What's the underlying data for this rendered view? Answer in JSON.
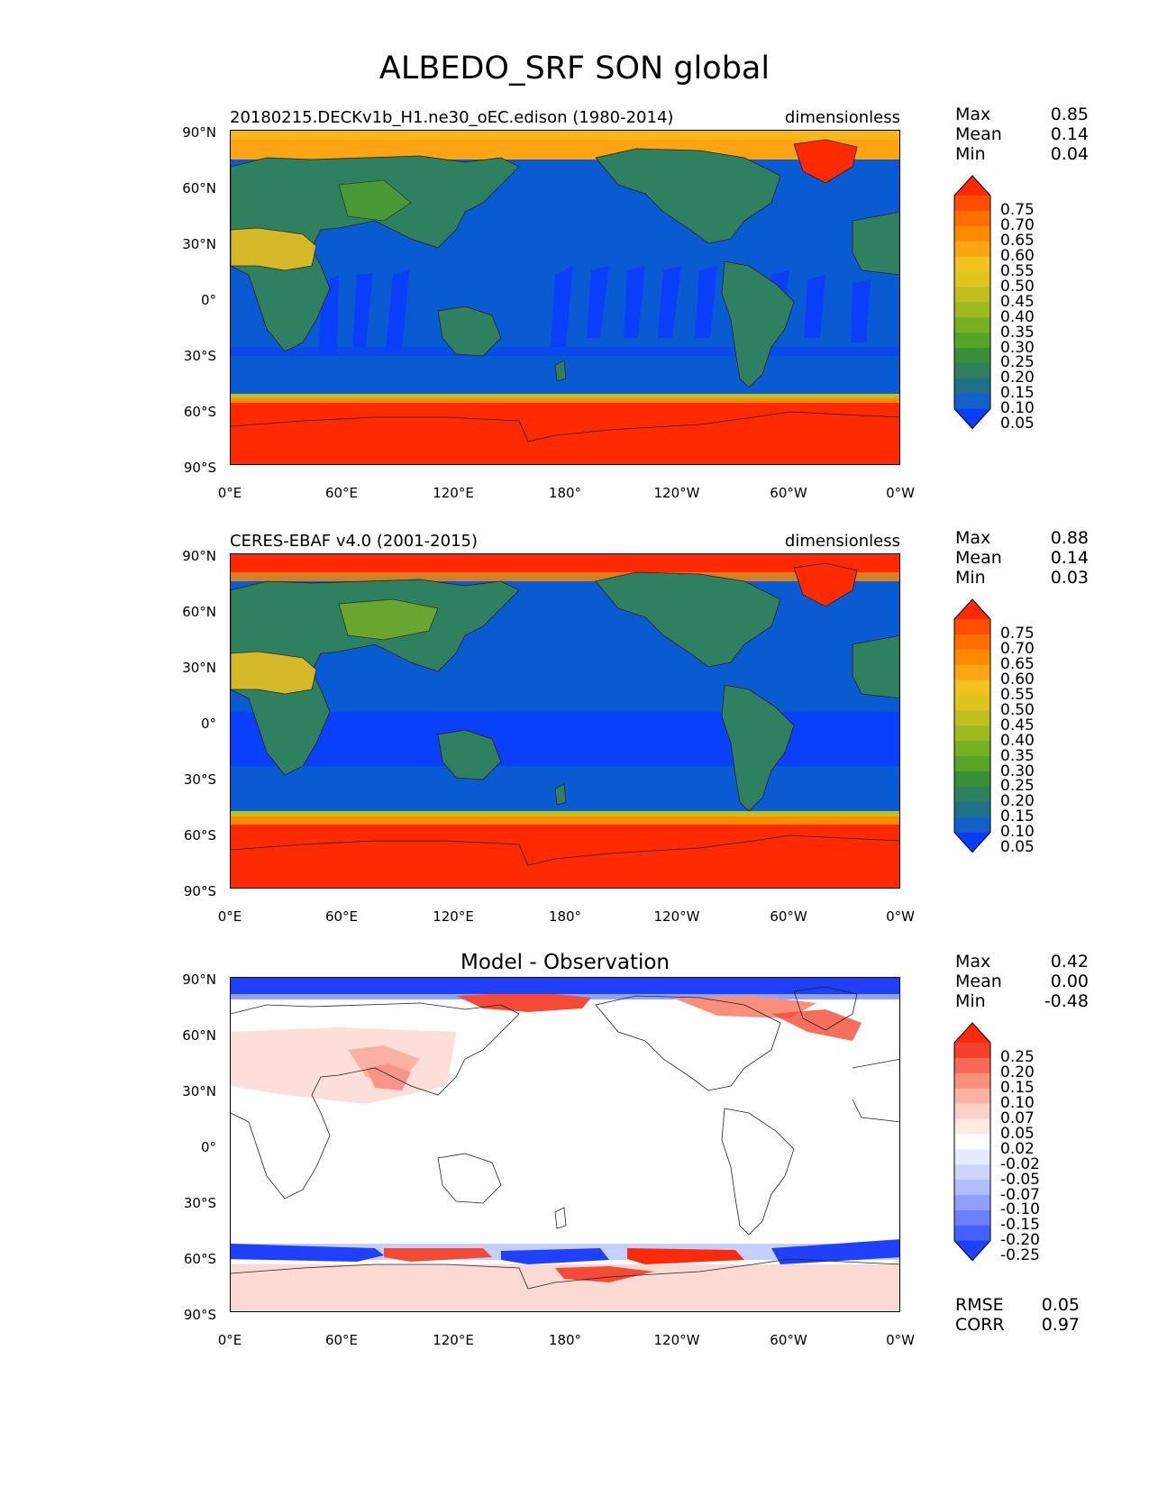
{
  "figure_title": "ALBEDO_SRF SON global",
  "lat_labels": [
    "90°N",
    "60°N",
    "30°N",
    "0°",
    "30°S",
    "60°S",
    "90°S"
  ],
  "lon_labels": [
    "0°E",
    "60°E",
    "120°E",
    "180°",
    "120°W",
    "60°W",
    "0°W"
  ],
  "panels": [
    {
      "id": "model",
      "title_left": "20180215.DECKv1b_H1.ne30_oEC.edison (1980-2014)",
      "title_right": "dimensionless",
      "title_center": "",
      "stats": {
        "max_label": "Max",
        "max": "0.85",
        "mean_label": "Mean",
        "mean": "0.14",
        "min_label": "Min",
        "min": "0.04"
      },
      "colorbar": {
        "ticks": [
          "0.75",
          "0.70",
          "0.65",
          "0.60",
          "0.55",
          "0.50",
          "0.45",
          "0.40",
          "0.35",
          "0.30",
          "0.25",
          "0.20",
          "0.15",
          "0.10",
          "0.05"
        ],
        "colors": [
          "#ff2a00",
          "#ff4e00",
          "#ff6e00",
          "#ff8a00",
          "#ffa514",
          "#f2c21e",
          "#ddc51e",
          "#c0bf20",
          "#9eba22",
          "#78b023",
          "#55a526",
          "#3a8e3a",
          "#2f8060",
          "#20708a",
          "#1560c8",
          "#0a3cff"
        ]
      }
    },
    {
      "id": "obs",
      "title_left": "CERES-EBAF v4.0 (2001-2015)",
      "title_right": "dimensionless",
      "title_center": "",
      "stats": {
        "max_label": "Max",
        "max": "0.88",
        "mean_label": "Mean",
        "mean": "0.14",
        "min_label": "Min",
        "min": "0.03"
      },
      "colorbar": {
        "ticks": [
          "0.75",
          "0.70",
          "0.65",
          "0.60",
          "0.55",
          "0.50",
          "0.45",
          "0.40",
          "0.35",
          "0.30",
          "0.25",
          "0.20",
          "0.15",
          "0.10",
          "0.05"
        ],
        "colors": [
          "#ff2a00",
          "#ff4e00",
          "#ff6e00",
          "#ff8a00",
          "#ffa514",
          "#f2c21e",
          "#ddc51e",
          "#c0bf20",
          "#9eba22",
          "#78b023",
          "#55a526",
          "#3a8e3a",
          "#2f8060",
          "#20708a",
          "#1560c8",
          "#0a3cff"
        ]
      }
    },
    {
      "id": "diff",
      "title_left": "",
      "title_right": "",
      "title_center": "Model - Observation",
      "stats": {
        "max_label": "Max",
        "max": "0.42",
        "mean_label": "Mean",
        "mean": "0.00",
        "min_label": "Min",
        "min": "-0.48"
      },
      "colorbar": {
        "ticks": [
          "0.25",
          "0.20",
          "0.15",
          "0.10",
          "0.07",
          "0.05",
          "0.02",
          "-0.02",
          "-0.05",
          "-0.07",
          "-0.10",
          "-0.15",
          "-0.20",
          "-0.25"
        ],
        "colors": [
          "#ff2a0a",
          "#f4402e",
          "#f76a55",
          "#fa8f7c",
          "#fcb3a6",
          "#fdd0c8",
          "#fee9e5",
          "#ffffff",
          "#e6ebff",
          "#cdd5ff",
          "#b0bdff",
          "#8fa0ff",
          "#6a80ff",
          "#4361ff",
          "#1f40ff"
        ]
      },
      "metrics": {
        "rmse_label": "RMSE",
        "rmse": "0.05",
        "corr_label": "CORR",
        "corr": "0.97"
      }
    }
  ],
  "fill_colors": {
    "model_ocean": "#0a5ad2",
    "model_ocean_deep": "#0a3cff",
    "model_land": "#2f8060",
    "model_land_green": "#55a526",
    "model_desert": "#e6c520",
    "model_ice": "#ff2a00",
    "model_arctic": "#ffa514",
    "obs_arctic": "#ff2a00",
    "diff_bg": "#fefefe",
    "diff_red": "#f44a36",
    "diff_blue": "#1f40ff",
    "diff_lightred": "#fcc8bf"
  }
}
